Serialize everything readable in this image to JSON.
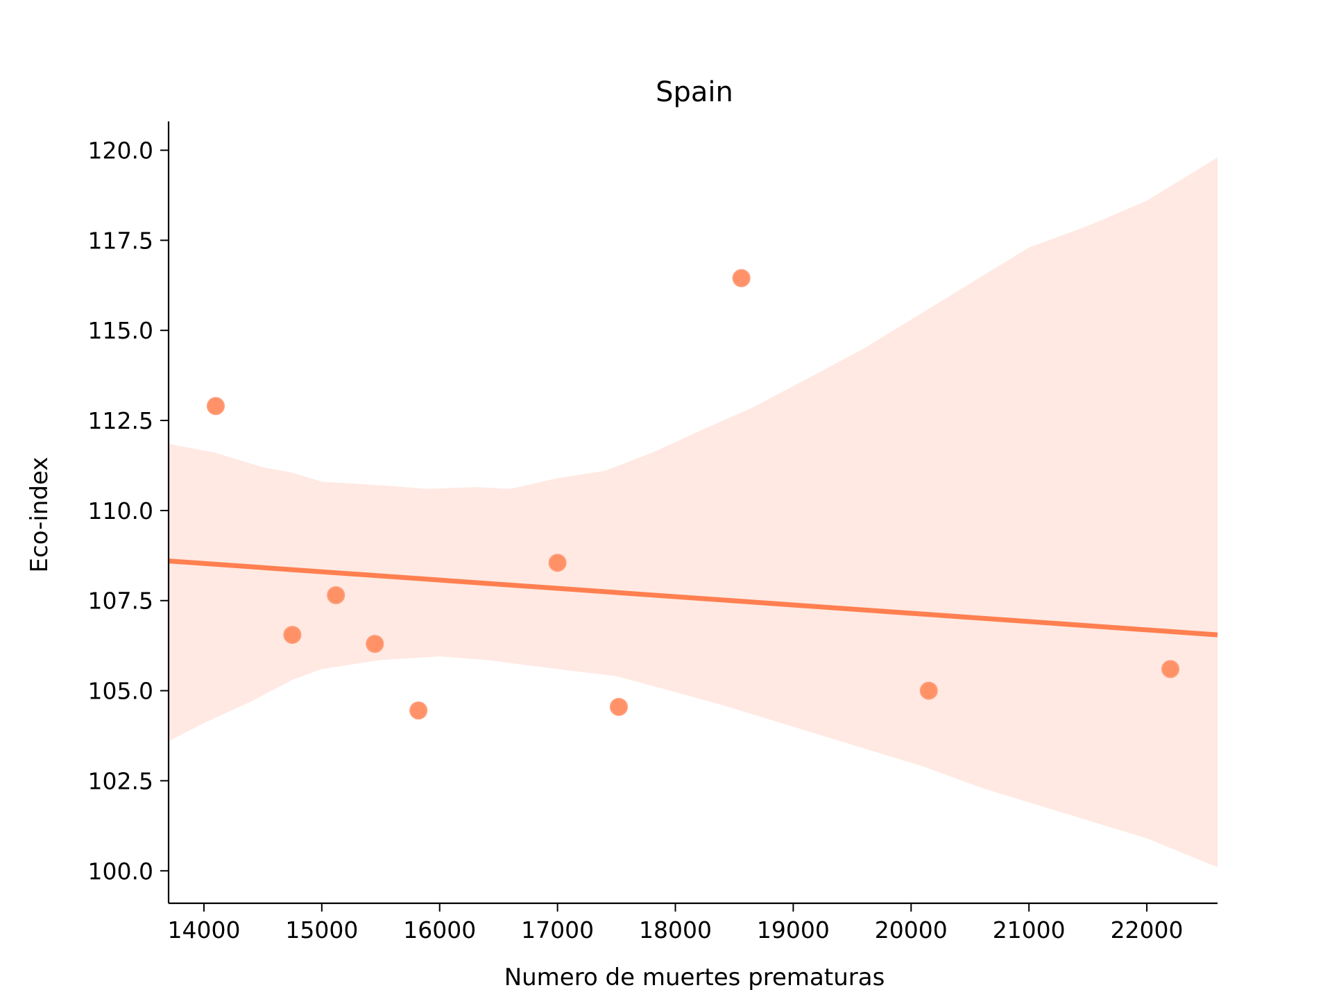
{
  "chart_data": {
    "type": "scatter",
    "title": "Spain",
    "xlabel": "Numero de muertes prematuras",
    "ylabel": "Eco-index",
    "xlim": [
      13700,
      22600
    ],
    "ylim": [
      99.1,
      120.8
    ],
    "xticks": [
      14000,
      15000,
      16000,
      17000,
      18000,
      19000,
      20000,
      21000,
      22000
    ],
    "yticks": [
      100.0,
      102.5,
      105.0,
      107.5,
      110.0,
      112.5,
      115.0,
      117.5,
      120.0
    ],
    "grid": false,
    "colors": {
      "points": "#ff8c60",
      "line": "#ff7f50",
      "band": "#ffe9e2"
    },
    "points": [
      {
        "x": 14100,
        "y": 112.9
      },
      {
        "x": 14750,
        "y": 106.55
      },
      {
        "x": 15120,
        "y": 107.65
      },
      {
        "x": 15450,
        "y": 106.3
      },
      {
        "x": 15820,
        "y": 104.45
      },
      {
        "x": 17000,
        "y": 108.55
      },
      {
        "x": 17520,
        "y": 104.55
      },
      {
        "x": 18560,
        "y": 116.45
      },
      {
        "x": 20150,
        "y": 105.0
      },
      {
        "x": 22200,
        "y": 105.6
      }
    ],
    "regression_line": [
      {
        "x": 13700,
        "y": 108.6
      },
      {
        "x": 22600,
        "y": 106.55
      }
    ],
    "confidence_band": {
      "upper": [
        {
          "x": 13700,
          "y": 111.85
        },
        {
          "x": 14100,
          "y": 111.6
        },
        {
          "x": 14500,
          "y": 111.2
        },
        {
          "x": 14750,
          "y": 111.05
        },
        {
          "x": 15000,
          "y": 110.8
        },
        {
          "x": 15500,
          "y": 110.7
        },
        {
          "x": 15900,
          "y": 110.6
        },
        {
          "x": 16300,
          "y": 110.65
        },
        {
          "x": 16600,
          "y": 110.6
        },
        {
          "x": 17000,
          "y": 110.9
        },
        {
          "x": 17400,
          "y": 111.1
        },
        {
          "x": 17800,
          "y": 111.6
        },
        {
          "x": 18200,
          "y": 112.2
        },
        {
          "x": 18650,
          "y": 112.85
        },
        {
          "x": 19200,
          "y": 113.8
        },
        {
          "x": 19600,
          "y": 114.5
        },
        {
          "x": 20100,
          "y": 115.5
        },
        {
          "x": 20600,
          "y": 116.5
        },
        {
          "x": 21000,
          "y": 117.3
        },
        {
          "x": 21500,
          "y": 117.9
        },
        {
          "x": 22000,
          "y": 118.6
        },
        {
          "x": 22600,
          "y": 119.8
        }
      ],
      "lower": [
        {
          "x": 13700,
          "y": 103.6
        },
        {
          "x": 14000,
          "y": 104.1
        },
        {
          "x": 14400,
          "y": 104.7
        },
        {
          "x": 14750,
          "y": 105.3
        },
        {
          "x": 15000,
          "y": 105.6
        },
        {
          "x": 15500,
          "y": 105.85
        },
        {
          "x": 16000,
          "y": 105.95
        },
        {
          "x": 16400,
          "y": 105.85
        },
        {
          "x": 17000,
          "y": 105.6
        },
        {
          "x": 17500,
          "y": 105.4
        },
        {
          "x": 17900,
          "y": 105.05
        },
        {
          "x": 18400,
          "y": 104.6
        },
        {
          "x": 19000,
          "y": 104.0
        },
        {
          "x": 19600,
          "y": 103.4
        },
        {
          "x": 20100,
          "y": 102.9
        },
        {
          "x": 20600,
          "y": 102.3
        },
        {
          "x": 21000,
          "y": 101.9
        },
        {
          "x": 21500,
          "y": 101.4
        },
        {
          "x": 22000,
          "y": 100.9
        },
        {
          "x": 22600,
          "y": 100.1
        }
      ]
    }
  }
}
